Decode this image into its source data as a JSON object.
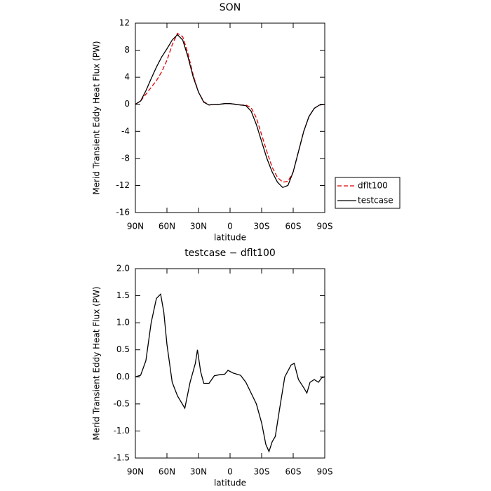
{
  "chart_data": [
    {
      "type": "line",
      "title": "SON",
      "xlabel": "latitude",
      "ylabel": "Merid Transient Eddy Heat Flux (PW)",
      "x": [
        90,
        85,
        80,
        75,
        70,
        65,
        60,
        55,
        50,
        45,
        40,
        35,
        30,
        25,
        20,
        15,
        10,
        5,
        0,
        -5,
        -10,
        -15,
        -20,
        -25,
        -30,
        -35,
        -40,
        -45,
        -50,
        -55,
        -60,
        -65,
        -70,
        -75,
        -80,
        -85,
        -90
      ],
      "series": [
        {
          "name": "dflt100",
          "color": "#e00000",
          "dash": true,
          "values": [
            0,
            0.5,
            1.5,
            2.5,
            3.5,
            4.8,
            6.5,
            8.8,
            10.5,
            10.0,
            7.5,
            4.3,
            1.8,
            0.4,
            -0.1,
            0,
            0,
            0.1,
            0.1,
            0,
            -0.1,
            -0.1,
            -0.5,
            -2.0,
            -4.5,
            -7.0,
            -9.3,
            -10.8,
            -11.5,
            -11.4,
            -10.0,
            -7.0,
            -4.0,
            -1.8,
            -0.6,
            -0.1,
            0
          ]
        },
        {
          "name": "testcase",
          "color": "#000000",
          "dash": false,
          "values": [
            0,
            0.5,
            2.0,
            3.8,
            5.5,
            7.0,
            8.2,
            9.5,
            10.3,
            9.5,
            7.0,
            4.0,
            1.8,
            0.3,
            -0.1,
            0,
            0,
            0.1,
            0.1,
            0,
            -0.1,
            -0.2,
            -1.0,
            -3.0,
            -5.5,
            -8.0,
            -10.0,
            -11.5,
            -12.3,
            -12.0,
            -10.0,
            -7.0,
            -4.0,
            -1.8,
            -0.6,
            -0.1,
            0
          ]
        }
      ],
      "xlim": [
        90,
        -90
      ],
      "xticks": [
        {
          "value": 90,
          "label": "90N"
        },
        {
          "value": 60,
          "label": "60N"
        },
        {
          "value": 30,
          "label": "30N"
        },
        0,
        {
          "value": -30,
          "label": "30S"
        },
        {
          "value": -60,
          "label": "60S"
        },
        {
          "value": -90,
          "label": "90S"
        }
      ],
      "ylim": [
        -16,
        12
      ],
      "yticks": [
        12,
        8,
        4,
        0,
        -4,
        -8,
        -12,
        -16
      ],
      "legend": "right"
    },
    {
      "type": "line",
      "title": "testcase − dflt100",
      "xlabel": "latitude",
      "ylabel": "Merid Transient Eddy Heat Flux (PW)",
      "x": [
        90,
        85,
        80,
        75,
        70,
        66,
        63,
        60,
        55,
        50,
        43,
        38,
        33,
        31,
        28,
        25,
        20,
        15,
        10,
        5,
        2,
        -3,
        -10,
        -15,
        -20,
        -25,
        -30,
        -34,
        -37,
        -40,
        -43,
        -47,
        -52,
        -58,
        -61,
        -65,
        -70,
        -73,
        -76,
        -80,
        -84,
        -87,
        -90
      ],
      "series": [
        {
          "name": "testcase − dflt100",
          "color": "#000000",
          "dash": false,
          "values": [
            0,
            0.03,
            0.3,
            1.0,
            1.45,
            1.53,
            1.2,
            0.6,
            -0.1,
            -0.35,
            -0.58,
            -0.1,
            0.25,
            0.5,
            0.1,
            -0.12,
            -0.12,
            0.02,
            0.04,
            0.05,
            0.12,
            0.07,
            0.03,
            -0.1,
            -0.3,
            -0.5,
            -0.85,
            -1.25,
            -1.38,
            -1.2,
            -1.1,
            -0.6,
            0.0,
            0.22,
            0.25,
            -0.05,
            -0.2,
            -0.3,
            -0.1,
            -0.05,
            -0.1,
            -0.02,
            0
          ]
        }
      ],
      "xlim": [
        90,
        -90
      ],
      "xticks": [
        {
          "value": 90,
          "label": "90N"
        },
        {
          "value": 60,
          "label": "60N"
        },
        {
          "value": 30,
          "label": "30N"
        },
        0,
        {
          "value": -30,
          "label": "30S"
        },
        {
          "value": -60,
          "label": "60S"
        },
        {
          "value": -90,
          "label": "90S"
        }
      ],
      "ylim": [
        -1.5,
        2.0
      ],
      "yticks": [
        {
          "value": 2.0,
          "label": "2.0"
        },
        1.5,
        {
          "value": 1.0,
          "label": "1.0"
        },
        0.5,
        {
          "value": 0.0,
          "label": "0.0"
        },
        -0.5,
        {
          "value": -1.0,
          "label": "-1.0"
        },
        -1.5
      ]
    }
  ]
}
